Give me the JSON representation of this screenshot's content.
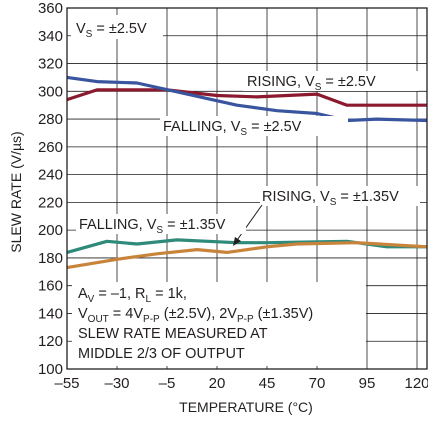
{
  "chart_data": {
    "type": "line",
    "xlabel": "TEMPERATURE (°C)",
    "ylabel": "SLEW RATE (V/µs)",
    "xlim": [
      -55,
      125
    ],
    "ylim": [
      100,
      360
    ],
    "x_ticks": [
      "–55",
      "–30",
      "–5",
      "20",
      "45",
      "70",
      "95",
      "120"
    ],
    "y_ticks": [
      "100",
      "120",
      "140",
      "160",
      "180",
      "200",
      "220",
      "240",
      "260",
      "280",
      "300",
      "320",
      "340",
      "360"
    ],
    "grid": true,
    "series": [
      {
        "name": "RISING, VS = ±2.5V",
        "color": "#8b1a2e",
        "points": [
          [
            -55,
            294
          ],
          [
            -40,
            301
          ],
          [
            -5,
            301
          ],
          [
            20,
            297
          ],
          [
            40,
            296
          ],
          [
            70,
            298
          ],
          [
            85,
            290
          ],
          [
            125,
            290
          ]
        ]
      },
      {
        "name": "FALLING, VS = ±2.5V",
        "color": "#3a559f",
        "points": [
          [
            -55,
            310
          ],
          [
            -40,
            307
          ],
          [
            -20,
            306
          ],
          [
            5,
            298
          ],
          [
            30,
            290
          ],
          [
            50,
            286
          ],
          [
            70,
            284
          ],
          [
            85,
            279
          ],
          [
            100,
            280
          ],
          [
            125,
            279
          ]
        ]
      },
      {
        "name": "FALLING, VS = ±1.35V",
        "color": "#2f8a7a",
        "points": [
          [
            -55,
            184
          ],
          [
            -35,
            192
          ],
          [
            -20,
            190
          ],
          [
            0,
            193
          ],
          [
            30,
            191
          ],
          [
            45,
            191
          ],
          [
            85,
            192
          ],
          [
            105,
            188
          ],
          [
            125,
            188
          ]
        ]
      },
      {
        "name": "RISING, VS = ±1.35V",
        "color": "#c9843c",
        "points": [
          [
            -55,
            173
          ],
          [
            -30,
            179
          ],
          [
            -10,
            183
          ],
          [
            10,
            186
          ],
          [
            25,
            184
          ],
          [
            45,
            188
          ],
          [
            60,
            190
          ],
          [
            90,
            191
          ],
          [
            125,
            188
          ]
        ]
      }
    ],
    "annotations": {
      "vs_label": {
        "main": "V",
        "sub": "S",
        "rest": " = ±2.5V"
      },
      "rising_25": {
        "main": "RISING, V",
        "sub": "S",
        "rest": " = ±2.5V"
      },
      "falling_25": {
        "main": "FALLING, V",
        "sub": "S",
        "rest": " = ±2.5V"
      },
      "rising_135": {
        "main": "RISING, V",
        "sub": "S",
        "rest": " = ±1.35V"
      },
      "falling_135": {
        "main": "FALLING, V",
        "sub": "S",
        "rest": " = ±1.35V"
      },
      "cond_line1": {
        "a": "A",
        "a_sub": "V",
        "b": " = –1, R",
        "b_sub": "L",
        "c": " = 1k,"
      },
      "cond_line2": {
        "a": "V",
        "a_sub": "OUT",
        "b": " = 4V",
        "b_sub": "P-P",
        "c": " (±2.5V), 2V",
        "c_sub": "P-P",
        "d": " (±1.35V)"
      },
      "cond_line3": "SLEW RATE MEASURED AT",
      "cond_line4": "MIDDLE 2/3 OF OUTPUT"
    }
  }
}
